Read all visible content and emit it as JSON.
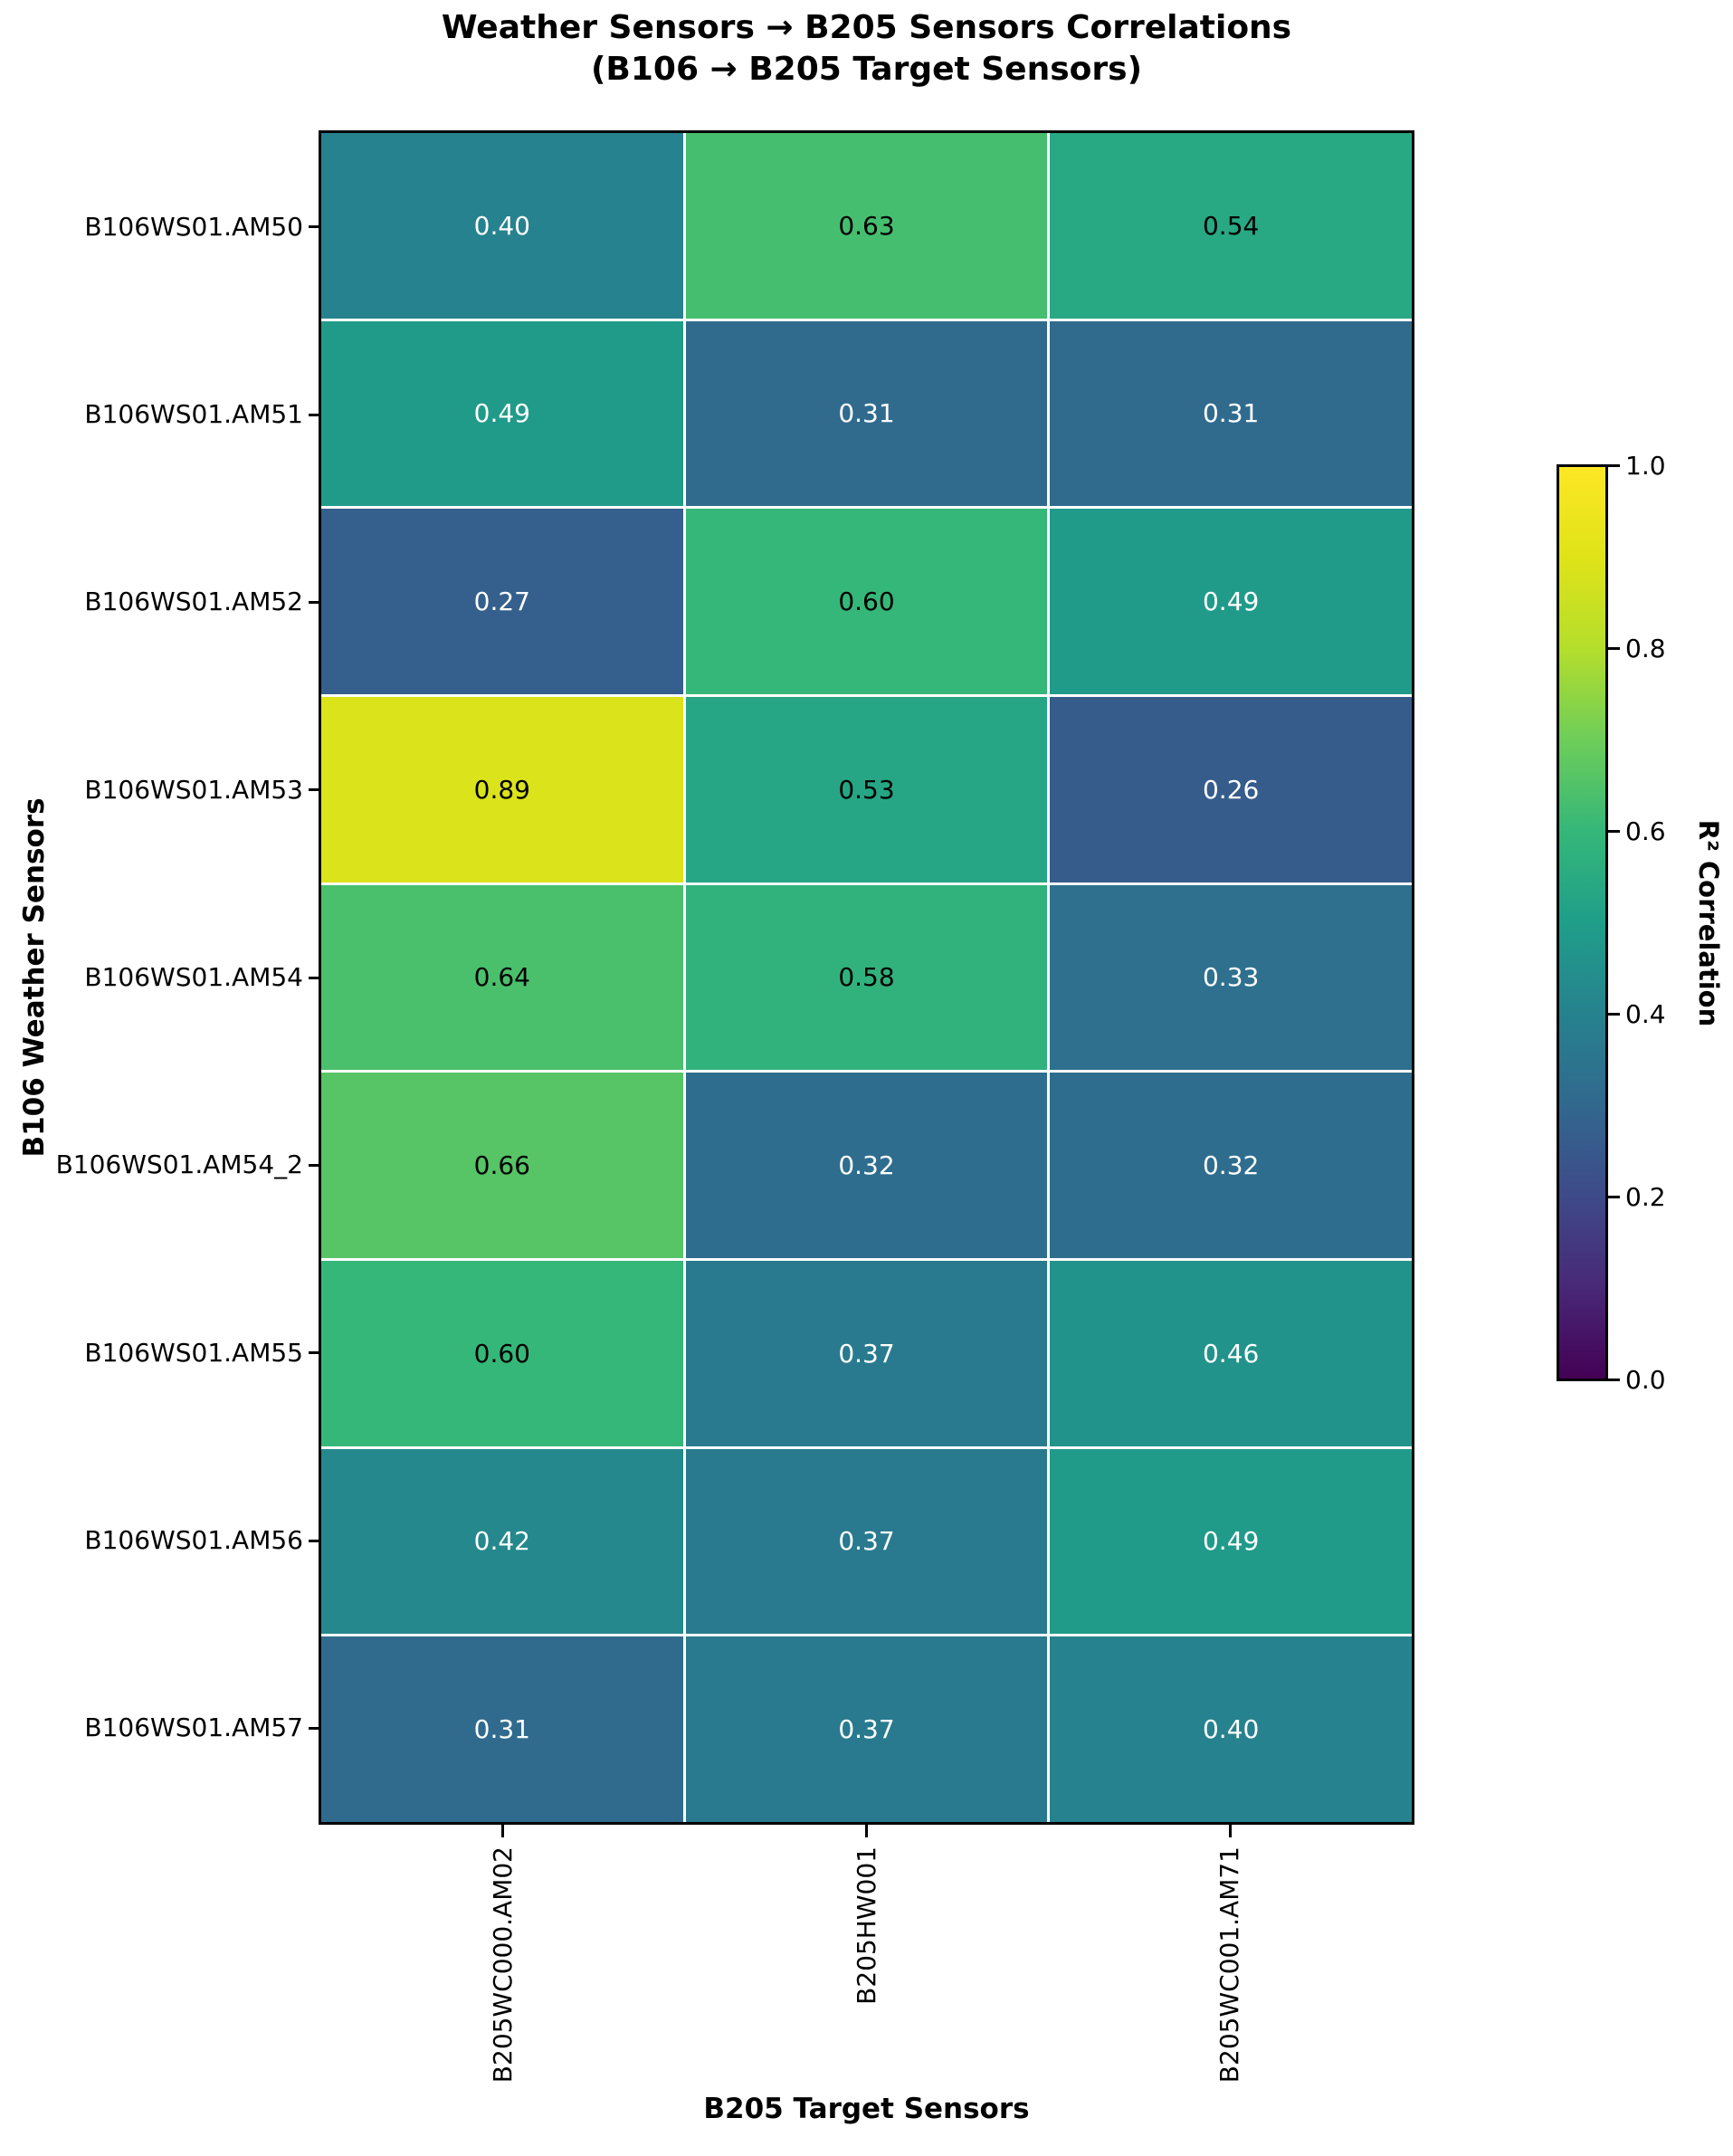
{
  "title": {
    "line1": "Weather Sensors → B205 Sensors Correlations",
    "line2": "(B106 → B205 Target Sensors)"
  },
  "axes": {
    "x_label": "B205 Target Sensors",
    "y_label": "B106 Weather Sensors"
  },
  "colorbar": {
    "label": "R² Correlation",
    "tick_labels": [
      "1.0",
      "0.8",
      "0.6",
      "0.4",
      "0.2",
      "0.0"
    ],
    "min": 0.0,
    "max": 1.0,
    "colormap": "viridis"
  },
  "chart_data": {
    "type": "heatmap",
    "title": "Weather Sensors → B205 Sensors Correlations (B106 → B205 Target Sensors)",
    "xlabel": "B205 Target Sensors",
    "ylabel": "B106 Weather Sensors",
    "legend": "R² Correlation",
    "x_categories": [
      "B205WC000.AM02",
      "B205HW001",
      "B205WC001.AM71"
    ],
    "y_categories": [
      "B106WS01.AM50",
      "B106WS01.AM51",
      "B106WS01.AM52",
      "B106WS01.AM53",
      "B106WS01.AM54",
      "B106WS01.AM54_2",
      "B106WS01.AM55",
      "B106WS01.AM56",
      "B106WS01.AM57"
    ],
    "values": [
      [
        0.4,
        0.63,
        0.54
      ],
      [
        0.49,
        0.31,
        0.31
      ],
      [
        0.27,
        0.6,
        0.49
      ],
      [
        0.89,
        0.53,
        0.26
      ],
      [
        0.64,
        0.58,
        0.33
      ],
      [
        0.66,
        0.32,
        0.32
      ],
      [
        0.6,
        0.37,
        0.46
      ],
      [
        0.42,
        0.37,
        0.49
      ],
      [
        0.31,
        0.37,
        0.4
      ]
    ],
    "value_decimals": 2,
    "vmin": 0.0,
    "vmax": 1.0,
    "colorscale": "viridis",
    "annotation_text_threshold": 0.5
  },
  "colors": {
    "background": "#ffffff",
    "grid_line": "#ffffff",
    "spine": "#000000",
    "annotation_dark": "#000000",
    "annotation_light": "#ffffff"
  }
}
